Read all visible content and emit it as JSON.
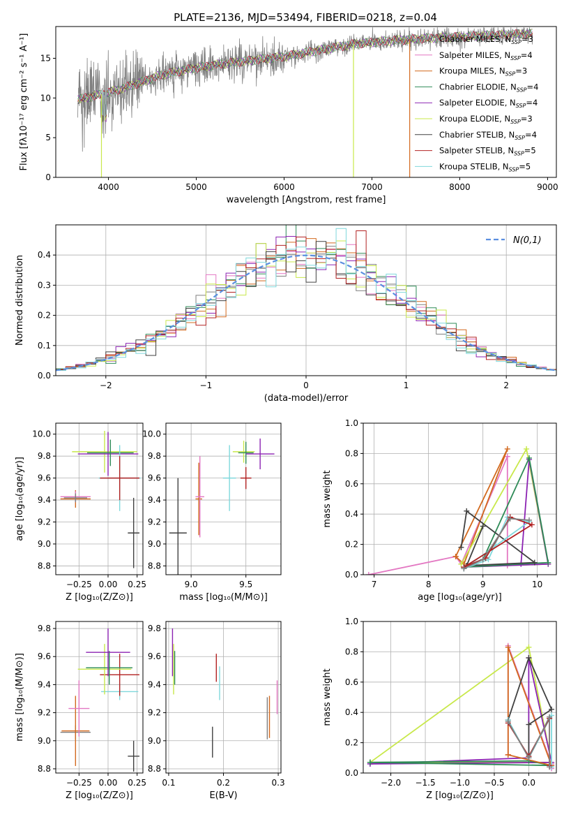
{
  "figure": {
    "title": "PLATE=2136, MJD=53494, FIBERID=0218, z=0.04"
  },
  "series_colors": {
    "Chabrier MILES": "#808080",
    "Salpeter MILES": "#e377c2",
    "Kroupa MILES": "#d2691e",
    "Chabrier ELODIE": "#2e8b57",
    "Salpeter ELODIE": "#8b22b2",
    "Kroupa ELODIE": "#c8e84a",
    "Chabrier STELIB": "#404040",
    "Salpeter STELIB": "#b22222",
    "Kroupa STELIB": "#7fd8dc"
  },
  "chart_data": [
    {
      "id": "spectrum",
      "type": "line",
      "title": "PLATE=2136, MJD=53494, FIBERID=0218, z=0.04",
      "xlabel": "wavelength [Angstrom, rest frame]",
      "ylabel": "Flux [fλ10⁻¹⁷ erg cm⁻² s⁻¹ A⁻¹]",
      "xlim": [
        3400,
        9100
      ],
      "ylim": [
        0,
        19
      ],
      "xticks": [
        4000,
        5000,
        6000,
        7000,
        8000,
        9000
      ],
      "yticks": [
        0,
        5,
        10,
        15
      ],
      "legend_position": "top-right",
      "continuum_x": [
        3650,
        3900,
        4100,
        4300,
        4600,
        5000,
        5300,
        5600,
        6000,
        6400,
        6800,
        7200,
        7600,
        8000,
        8400,
        8830
      ],
      "continuum_y": [
        9.8,
        10.4,
        11.0,
        11.7,
        12.9,
        13.8,
        14.3,
        14.7,
        15.2,
        16.0,
        16.8,
        17.2,
        17.5,
        17.7,
        17.9,
        18.1
      ],
      "series": [
        {
          "name": "Chabrier MILES, N_SSP=3",
          "legend": "Chabrier MILES, N",
          "sub": "SSP",
          "tail": "=3"
        },
        {
          "name": "Salpeter MILES, N_SSP=4",
          "legend": "Salpeter MILES, N",
          "sub": "SSP",
          "tail": "=4"
        },
        {
          "name": "Kroupa MILES, N_SSP=3",
          "legend": "Kroupa MILES, N",
          "sub": "SSP",
          "tail": "=3"
        },
        {
          "name": "Chabrier ELODIE, N_SSP=4",
          "legend": "Chabrier ELODIE, N",
          "sub": "SSP",
          "tail": "=4"
        },
        {
          "name": "Salpeter ELODIE, N_SSP=4",
          "legend": "Salpeter ELODIE, N",
          "sub": "SSP",
          "tail": "=4"
        },
        {
          "name": "Kroupa ELODIE, N_SSP=3",
          "legend": "Kroupa ELODIE, N",
          "sub": "SSP",
          "tail": "=3"
        },
        {
          "name": "Chabrier STELIB, N_SSP=4",
          "legend": "Chabrier STELIB, N",
          "sub": "SSP",
          "tail": "=4"
        },
        {
          "name": "Salpeter STELIB, N_SSP=5",
          "legend": "Salpeter STELIB, N",
          "sub": "SSP",
          "tail": "=5"
        },
        {
          "name": "Kroupa STELIB, N_SSP=5",
          "legend": "Kroupa STELIB, N",
          "sub": "SSP",
          "tail": "=5"
        }
      ]
    },
    {
      "id": "residuals",
      "type": "bar",
      "xlabel": "(data-model)/error",
      "ylabel": "Normed distribution",
      "xlim": [
        -2.5,
        2.5
      ],
      "ylim": [
        0,
        0.5
      ],
      "xticks": [
        -2,
        -1,
        0,
        1,
        2
      ],
      "yticks": [
        0.0,
        0.1,
        0.2,
        0.3,
        0.4
      ],
      "grid": true,
      "legend_position": "top-right",
      "bin_width": 0.1,
      "reference_curve": {
        "name": "N(0,1)",
        "mean": 0,
        "sigma": 1,
        "color": "#5b8fe0"
      }
    },
    {
      "id": "age_vs_Z",
      "type": "scatter",
      "xlabel": "Z [log₁₀(Z/Z⊙)]",
      "ylabel": "age  [log₁₀(age/yr)]",
      "xlim": [
        -0.45,
        0.3
      ],
      "ylim": [
        8.72,
        10.1
      ],
      "xticks": [
        -0.25,
        0.0,
        0.25
      ],
      "yticks": [
        8.8,
        9.0,
        9.2,
        9.4,
        9.6,
        9.8,
        10.0
      ],
      "grid": true,
      "points": [
        {
          "series": "Kroupa MILES",
          "x": -0.28,
          "y": 9.41,
          "xerr": 0.13,
          "yerr": 0.08
        },
        {
          "series": "Salpeter MILES",
          "x": -0.28,
          "y": 9.43,
          "xerr": 0.13,
          "yerr": 0.05
        },
        {
          "series": "Chabrier MILES",
          "x": -0.28,
          "y": 9.42,
          "xerr": 0.1,
          "yerr": 0.04
        },
        {
          "series": "Kroupa ELODIE",
          "x": -0.03,
          "y": 9.84,
          "xerr": 0.28,
          "yerr": 0.19
        },
        {
          "series": "Salpeter ELODIE",
          "x": 0.0,
          "y": 9.82,
          "xerr": 0.26,
          "yerr": 0.2
        },
        {
          "series": "Chabrier ELODIE",
          "x": 0.02,
          "y": 9.83,
          "xerr": 0.2,
          "yerr": 0.12
        },
        {
          "series": "Kroupa STELIB",
          "x": 0.1,
          "y": 9.6,
          "xerr": 0.18,
          "yerr": 0.3
        },
        {
          "series": "Salpeter STELIB",
          "x": 0.1,
          "y": 9.6,
          "xerr": 0.17,
          "yerr": 0.2
        },
        {
          "series": "Chabrier STELIB",
          "x": 0.22,
          "y": 9.1,
          "xerr": 0.05,
          "yerr": 0.32
        }
      ]
    },
    {
      "id": "age_vs_mass",
      "type": "scatter",
      "xlabel": "mass [log₁₀(M/M⊙)]",
      "xlim": [
        8.77,
        9.82
      ],
      "ylim": [
        8.72,
        10.1
      ],
      "xticks": [
        9.0,
        9.5
      ],
      "yticks": [
        8.8,
        9.0,
        9.2,
        9.4,
        9.6,
        9.8,
        10.0
      ],
      "grid": true,
      "points": [
        {
          "series": "Chabrier STELIB",
          "x": 8.88,
          "y": 9.1,
          "xerr": 0.08,
          "yerr": 0.5
        },
        {
          "series": "Kroupa MILES",
          "x": 9.07,
          "y": 9.41,
          "xerr": 0.03,
          "yerr": 0.33
        },
        {
          "series": "Salpeter MILES",
          "x": 9.08,
          "y": 9.43,
          "xerr": 0.04,
          "yerr": 0.37
        },
        {
          "series": "Kroupa STELIB",
          "x": 9.35,
          "y": 9.6,
          "xerr": 0.06,
          "yerr": 0.3
        },
        {
          "series": "Salpeter STELIB",
          "x": 9.5,
          "y": 9.6,
          "xerr": 0.05,
          "yerr": 0.1
        },
        {
          "series": "Kroupa ELODIE",
          "x": 9.48,
          "y": 9.84,
          "xerr": 0.1,
          "yerr": 0.1
        },
        {
          "series": "Chabrier ELODIE",
          "x": 9.5,
          "y": 9.83,
          "xerr": 0.07,
          "yerr": 0.1
        },
        {
          "series": "Salpeter ELODIE",
          "x": 9.63,
          "y": 9.82,
          "xerr": 0.13,
          "yerr": 0.14
        }
      ]
    },
    {
      "id": "weight_vs_age",
      "type": "line",
      "xlabel": "age  [log₁₀(age/yr)]",
      "ylabel": "mass weight",
      "xlim": [
        6.8,
        10.35
      ],
      "ylim": [
        0,
        1
      ],
      "xticks": [
        7,
        8,
        9,
        10
      ],
      "yticks": [
        0.0,
        0.2,
        0.4,
        0.6,
        0.8,
        1.0
      ],
      "grid": true,
      "series": [
        {
          "name": "Salpeter MILES",
          "x": [
            6.9,
            8.5,
            8.6,
            9.45,
            9.45
          ],
          "y": [
            0.0,
            0.12,
            0.07,
            0.78,
            0.06
          ]
        },
        {
          "name": "Kroupa MILES",
          "x": [
            8.5,
            8.65,
            9.45,
            8.5
          ],
          "y": [
            0.12,
            0.07,
            0.83,
            0.12
          ]
        },
        {
          "name": "Kroupa ELODIE",
          "x": [
            8.6,
            9.8,
            10.2,
            8.65
          ],
          "y": [
            0.07,
            0.83,
            0.07,
            0.05
          ]
        },
        {
          "name": "Salpeter ELODIE",
          "x": [
            8.65,
            9.7,
            9.85,
            10.2,
            8.65
          ],
          "y": [
            0.05,
            0.07,
            0.76,
            0.07,
            0.05
          ]
        },
        {
          "name": "Chabrier ELODIE",
          "x": [
            8.65,
            9.0,
            9.85,
            10.2,
            8.65
          ],
          "y": [
            0.05,
            0.1,
            0.77,
            0.08,
            0.05
          ]
        },
        {
          "name": "Chabrier STELIB",
          "x": [
            8.6,
            8.7,
            9.95,
            8.7,
            9.0
          ],
          "y": [
            0.18,
            0.42,
            0.08,
            0.06,
            0.32
          ]
        },
        {
          "name": "Kroupa STELIB",
          "x": [
            8.65,
            9.1,
            9.45,
            9.85,
            8.65
          ],
          "y": [
            0.04,
            0.1,
            0.38,
            0.35,
            0.04
          ]
        },
        {
          "name": "Salpeter STELIB",
          "x": [
            8.65,
            9.05,
            9.5,
            9.9,
            8.65
          ],
          "y": [
            0.05,
            0.11,
            0.38,
            0.33,
            0.05
          ]
        },
        {
          "name": "Chabrier MILES",
          "x": [
            8.65,
            9.0,
            9.5,
            9.85
          ],
          "y": [
            0.04,
            0.1,
            0.37,
            0.36
          ]
        }
      ]
    },
    {
      "id": "mass_vs_Z",
      "type": "scatter",
      "xlabel": "Z [log₁₀(Z/Z⊙)]",
      "ylabel": "mass [log₁₀(M/M⊙)]",
      "xlim": [
        -0.45,
        0.3
      ],
      "ylim": [
        8.77,
        9.85
      ],
      "xticks": [
        -0.25,
        0.0,
        0.25
      ],
      "yticks": [
        8.8,
        9.0,
        9.2,
        9.4,
        9.6,
        9.8
      ],
      "grid": true,
      "points": [
        {
          "series": "Chabrier STELIB",
          "x": 0.22,
          "y": 8.89,
          "xerr": 0.05,
          "yerr": 0.11
        },
        {
          "series": "Chabrier MILES",
          "x": -0.28,
          "y": 9.06,
          "xerr": 0.13,
          "yerr": 0.05
        },
        {
          "series": "Kroupa MILES",
          "x": -0.28,
          "y": 9.07,
          "xerr": 0.12,
          "yerr": 0.25
        },
        {
          "series": "Salpeter MILES",
          "x": -0.25,
          "y": 9.23,
          "xerr": 0.09,
          "yerr": 0.2
        },
        {
          "series": "Kroupa STELIB",
          "x": 0.1,
          "y": 9.35,
          "xerr": 0.16,
          "yerr": 0.06
        },
        {
          "series": "Salpeter STELIB",
          "x": 0.1,
          "y": 9.47,
          "xerr": 0.17,
          "yerr": 0.15
        },
        {
          "series": "Kroupa ELODIE",
          "x": -0.03,
          "y": 9.51,
          "xerr": 0.23,
          "yerr": 0.18
        },
        {
          "series": "Chabrier ELODIE",
          "x": 0.01,
          "y": 9.52,
          "xerr": 0.2,
          "yerr": 0.12
        },
        {
          "series": "Salpeter ELODIE",
          "x": 0.0,
          "y": 9.63,
          "xerr": 0.19,
          "yerr": 0.17
        }
      ]
    },
    {
      "id": "mass_vs_ebv",
      "type": "scatter",
      "xlabel": "E(B-V)",
      "xlim": [
        0.095,
        0.305
      ],
      "ylim": [
        8.77,
        9.85
      ],
      "xticks": [
        0.1,
        0.2,
        0.3
      ],
      "yticks": [
        8.8,
        9.0,
        9.2,
        9.4,
        9.6,
        9.8
      ],
      "grid": true,
      "points": [
        {
          "series": "Salpeter ELODIE",
          "x": 0.107,
          "y": 9.63,
          "xerr": 0.0,
          "yerr": 0.17
        },
        {
          "series": "Kroupa ELODIE",
          "x": 0.109,
          "y": 9.51,
          "xerr": 0.0,
          "yerr": 0.18
        },
        {
          "series": "Chabrier ELODIE",
          "x": 0.111,
          "y": 9.52,
          "xerr": 0.0,
          "yerr": 0.12
        },
        {
          "series": "Chabrier STELIB",
          "x": 0.18,
          "y": 8.99,
          "xerr": 0.0,
          "yerr": 0.11
        },
        {
          "series": "Salpeter STELIB",
          "x": 0.187,
          "y": 9.52,
          "xerr": 0.0,
          "yerr": 0.1
        },
        {
          "series": "Kroupa STELIB",
          "x": 0.193,
          "y": 9.41,
          "xerr": 0.0,
          "yerr": 0.12
        },
        {
          "series": "Chabrier MILES",
          "x": 0.28,
          "y": 9.16,
          "xerr": 0.0,
          "yerr": 0.15
        },
        {
          "series": "Kroupa MILES",
          "x": 0.284,
          "y": 9.17,
          "xerr": 0.0,
          "yerr": 0.15
        },
        {
          "series": "Salpeter MILES",
          "x": 0.298,
          "y": 9.31,
          "xerr": 0.0,
          "yerr": 0.12
        }
      ]
    },
    {
      "id": "weight_vs_Z",
      "type": "line",
      "xlabel": "Z [log₁₀(Z/Z⊙)]",
      "ylabel": "mass weight",
      "xlim": [
        -2.4,
        0.4
      ],
      "ylim": [
        0,
        1
      ],
      "xticks": [
        -2.0,
        -1.5,
        -1.0,
        -0.5,
        0.0
      ],
      "yticks": [
        0.0,
        0.2,
        0.4,
        0.6,
        0.8,
        1.0
      ],
      "grid": true,
      "series": [
        {
          "name": "Kroupa ELODIE",
          "x": [
            -2.3,
            0.0,
            0.33,
            -2.3
          ],
          "y": [
            0.07,
            0.83,
            0.07,
            0.07
          ]
        },
        {
          "name": "Salpeter ELODIE",
          "x": [
            -2.3,
            0.0,
            0.0,
            0.33,
            -2.3
          ],
          "y": [
            0.06,
            0.1,
            0.76,
            0.07,
            0.06
          ]
        },
        {
          "name": "Chabrier ELODIE",
          "x": [
            -2.3,
            0.0,
            0.33,
            -2.3
          ],
          "y": [
            0.07,
            0.08,
            0.05,
            0.07
          ]
        },
        {
          "name": "Salpeter MILES",
          "x": [
            -0.3,
            -0.3,
            0.33,
            0.33
          ],
          "y": [
            0.12,
            0.84,
            0.06,
            0.03
          ]
        },
        {
          "name": "Kroupa MILES",
          "x": [
            -0.3,
            -0.3,
            0.33,
            -0.3
          ],
          "y": [
            0.12,
            0.83,
            0.05,
            0.12
          ]
        },
        {
          "name": "Chabrier STELIB",
          "x": [
            -0.3,
            0.0,
            0.33,
            0.0,
            0.0
          ],
          "y": [
            0.35,
            0.76,
            0.42,
            0.32,
            0.1
          ]
        },
        {
          "name": "Kroupa STELIB",
          "x": [
            -0.3,
            0.0,
            0.33,
            0.33
          ],
          "y": [
            0.35,
            0.1,
            0.38,
            0.04
          ]
        },
        {
          "name": "Salpeter STELIB",
          "x": [
            -0.3,
            0.0,
            0.3,
            0.3
          ],
          "y": [
            0.33,
            0.11,
            0.36,
            0.05
          ]
        },
        {
          "name": "Chabrier MILES",
          "x": [
            -0.3,
            0.0,
            0.3,
            0.3
          ],
          "y": [
            0.34,
            0.1,
            0.37,
            0.04
          ]
        }
      ]
    }
  ]
}
